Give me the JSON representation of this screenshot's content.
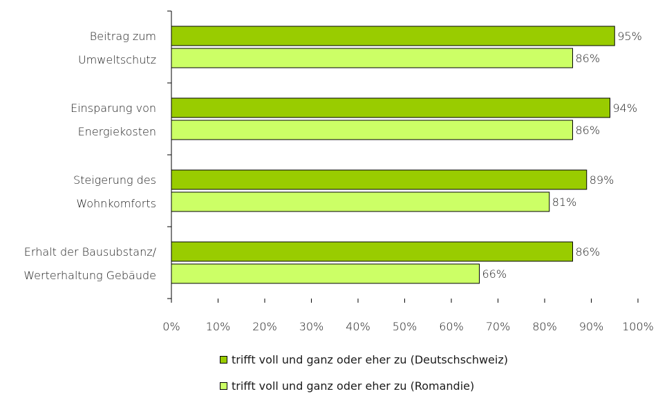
{
  "chart_data": {
    "type": "bar",
    "orientation": "horizontal",
    "categories": [
      [
        "Beitrag zum",
        "Umweltschutz"
      ],
      [
        "Einsparung von",
        "Energiekosten"
      ],
      [
        "Steigerung des",
        "Wohnkomforts"
      ],
      [
        "Erhalt der Bausubstanz/",
        "Werterhaltung Gebäude"
      ]
    ],
    "series": [
      {
        "name": "trifft voll und ganz oder eher zu (Deutschschweiz)",
        "color": "#99cc00",
        "values": [
          95,
          94,
          89,
          86
        ],
        "labels": [
          "95%",
          "94%",
          "89%",
          "86%"
        ]
      },
      {
        "name": "trifft voll und ganz oder eher zu (Romandie)",
        "color": "#ccff66",
        "values": [
          86,
          86,
          81,
          66
        ],
        "labels": [
          "86%",
          "86%",
          "81%",
          "66%"
        ]
      }
    ],
    "xlim": [
      0,
      100
    ],
    "x_ticks": [
      0,
      10,
      20,
      30,
      40,
      50,
      60,
      70,
      80,
      90,
      100
    ],
    "x_tick_labels": [
      "0%",
      "10%",
      "20%",
      "30%",
      "40%",
      "50%",
      "60%",
      "70%",
      "80%",
      "90%",
      "100%"
    ],
    "grid": false,
    "legend_position": "bottom"
  }
}
